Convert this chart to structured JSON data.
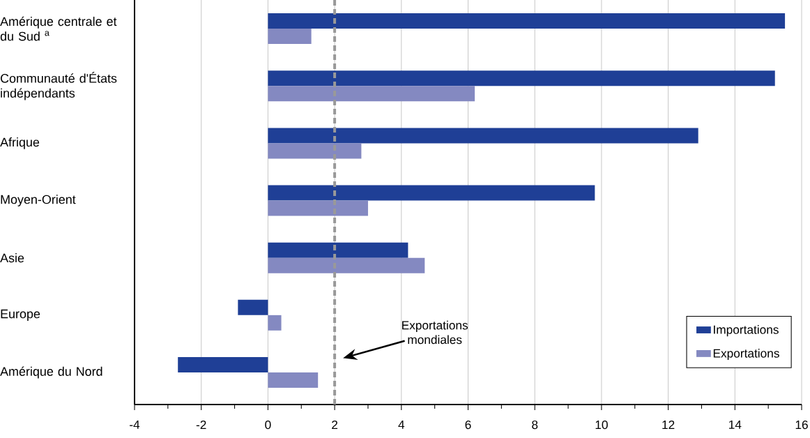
{
  "chart_data": {
    "type": "bar",
    "orientation": "horizontal",
    "categories": [
      "Amérique centrale et du Sud $^{a}$",
      "Communauté d'États indépendants",
      "Afrique",
      "Moyen-Orient",
      "Asie",
      "Europe",
      "Amérique du Nord"
    ],
    "series": [
      {
        "name": "Importations",
        "color": "#1f3f96",
        "values": [
          15.5,
          15.2,
          12.9,
          9.8,
          4.2,
          -0.9,
          -2.7
        ]
      },
      {
        "name": "Exportations",
        "color": "#8489c1",
        "values": [
          1.3,
          6.2,
          2.8,
          3.0,
          4.7,
          0.4,
          1.5
        ]
      }
    ],
    "xlim": [
      -4,
      16
    ],
    "xticks": [
      -4,
      {
        "value": -3,
        "label": null
      },
      -2,
      {
        "value": -1,
        "label": null
      },
      0,
      {
        "value": 1,
        "label": null
      },
      2,
      {
        "value": 3,
        "label": null
      },
      4,
      {
        "value": 5,
        "label": null
      },
      6,
      {
        "value": 7,
        "label": null
      },
      8,
      {
        "value": 9,
        "label": null
      },
      10,
      {
        "value": 11,
        "label": null
      },
      12,
      {
        "value": 13,
        "label": null
      },
      14,
      {
        "value": 15,
        "label": null
      },
      16
    ],
    "grid": "x",
    "legend": "bottom right",
    "ref_lines": [
      {
        "axis": "x",
        "value": 2,
        "color": "#999999",
        "line_style": "dashed"
      }
    ],
    "annotations": [
      "Exportations mondiales"
    ]
  }
}
